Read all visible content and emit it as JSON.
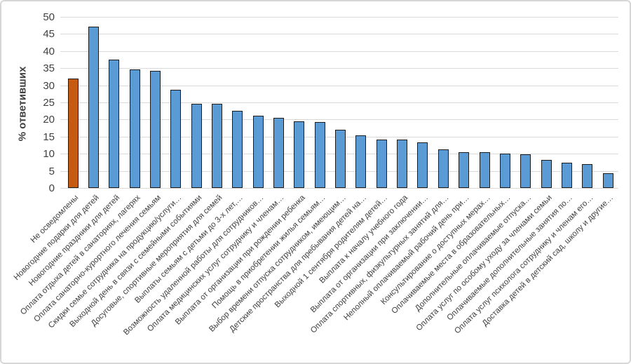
{
  "chart_data": {
    "type": "bar",
    "title": "",
    "xlabel": "",
    "ylabel": "% ответивших",
    "ylim": [
      0,
      50
    ],
    "yticks": [
      0,
      5,
      10,
      15,
      20,
      25,
      30,
      35,
      40,
      45,
      50
    ],
    "grid": "horizontal",
    "legend": "none",
    "colors": {
      "bar_default": "#5B9BD5",
      "bar_highlight": "#C55A11",
      "bar_border": "#1C1C1C",
      "gridline": "#D9D9D9",
      "text": "#404040"
    },
    "highlight_index": 0,
    "categories": [
      "Не осведомлены",
      "Новогодние подарки для детей",
      "Новогодние праздники для детей",
      "Оплата отдыха детей в санаториях, лагерях",
      "Оплата санаторно-курортного лечения семьям",
      "Скидки семье сотрудника на продукцию/услуги…",
      "Выходной день в связи с семейными событиями",
      "Досуговые, спортивные мероприятия для семей",
      "Выплаты семьям с детьми до 3-х лет,…",
      "Возможность удаленной работы для сотрудников…",
      "Оплата медицинских услуг сотруднику и членам…",
      "Выплата от организации при рождении ребенка",
      "Помощь в приобретении жилья семьям…",
      "Выбор времени отпуска сотрудником, имеющим…",
      "Детские пространства для пребывания детей на…",
      "Выходной 1 сентября родителям детей…",
      "Выплата к началу учебного года",
      "Выплата от организации при заключении…",
      "Оплата спортивных, физкультурных занятий для…",
      "Неполный оплачиваемый рабочий день при…",
      "Консультирование о доступных мерах…",
      "Оплачиваемые места в образовательных…",
      "Дополнительные оплачиваемые отпуска…",
      "Оплата услуг по особому уходу за членами семьи",
      "Оплачиваемые дополнительные занятия по…",
      "Оплата услуг психолога сотруднику и членам его…",
      "Доставка детей в детский сад, школу и другие…"
    ],
    "values": [
      32,
      47.2,
      37.6,
      34.6,
      34.3,
      28.6,
      24.5,
      24.5,
      22.6,
      21.1,
      20.5,
      19.5,
      19.2,
      17.0,
      15.3,
      14.2,
      14.2,
      13.4,
      11.3,
      10.4,
      10.4,
      10.0,
      9.8,
      8.1,
      7.3,
      6.9,
      4.3
    ]
  }
}
